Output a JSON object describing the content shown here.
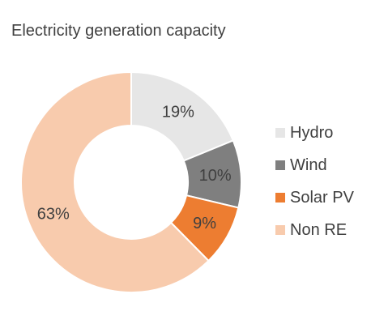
{
  "chart_data": {
    "type": "pie",
    "subtype": "donut",
    "title": "Electricity generation capacity",
    "categories": [
      "Hydro",
      "Wind",
      "Solar PV",
      "Non RE"
    ],
    "values": [
      19,
      10,
      9,
      63
    ],
    "labels": [
      "19%",
      "10%",
      "9%",
      "63%"
    ],
    "colors": [
      "#e6e6e6",
      "#7f7f7f",
      "#ed7d31",
      "#f8cbad"
    ],
    "unit": "%",
    "start_angle_deg": 0,
    "direction": "clockwise",
    "legend_position": "right"
  }
}
